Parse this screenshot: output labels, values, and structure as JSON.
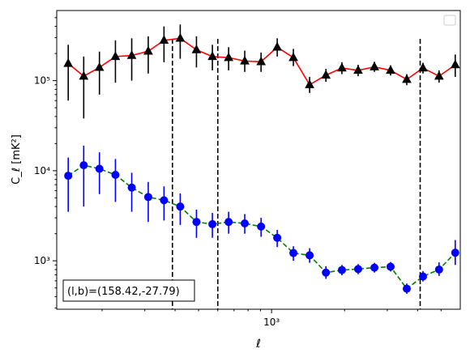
{
  "chart_data": {
    "type": "scatter",
    "x_scale": "log",
    "y_scale": "log",
    "xlim": [
      130,
      6000
    ],
    "ylim": [
      290,
      600000
    ],
    "xlabel": "ℓ",
    "ylabel": "C_ℓ  [mK²]",
    "x_ticks": [
      {
        "value": 1000,
        "label": "10³"
      }
    ],
    "y_ticks": [
      {
        "value": 1000,
        "label": "10³"
      },
      {
        "value": 10000,
        "label": "10⁴"
      },
      {
        "value": 100000,
        "label": "10⁵"
      }
    ],
    "legend_position": "top-right",
    "annotation": "(l,b)=(158.42,-27.79)",
    "vertical_lines": [
      390,
      600,
      4100
    ],
    "series": [
      {
        "color": "#ff0000",
        "marker": "triangle",
        "marker_color": "#000000",
        "errorbar_color": "#000000",
        "linestyle": "solid",
        "points": [
          {
            "x": 145,
            "y": 155000,
            "lo": 60000,
            "hi": 250000
          },
          {
            "x": 168,
            "y": 112000,
            "lo": 38000,
            "hi": 185000
          },
          {
            "x": 195,
            "y": 140000,
            "lo": 70000,
            "hi": 210000
          },
          {
            "x": 227,
            "y": 185000,
            "lo": 95000,
            "hi": 280000
          },
          {
            "x": 265,
            "y": 190000,
            "lo": 100000,
            "hi": 295000
          },
          {
            "x": 310,
            "y": 212000,
            "lo": 120000,
            "hi": 310000
          },
          {
            "x": 360,
            "y": 280000,
            "lo": 160000,
            "hi": 400000
          },
          {
            "x": 420,
            "y": 295000,
            "lo": 175000,
            "hi": 420000
          },
          {
            "x": 490,
            "y": 220000,
            "lo": 140000,
            "hi": 310000
          },
          {
            "x": 570,
            "y": 185000,
            "lo": 130000,
            "hi": 250000
          },
          {
            "x": 665,
            "y": 180000,
            "lo": 130000,
            "hi": 235000
          },
          {
            "x": 775,
            "y": 165000,
            "lo": 125000,
            "hi": 215000
          },
          {
            "x": 905,
            "y": 162000,
            "lo": 125000,
            "hi": 205000
          },
          {
            "x": 1055,
            "y": 235000,
            "lo": 185000,
            "hi": 295000
          },
          {
            "x": 1230,
            "y": 180000,
            "lo": 145000,
            "hi": 225000
          },
          {
            "x": 1435,
            "y": 90000,
            "lo": 73000,
            "hi": 110000
          },
          {
            "x": 1675,
            "y": 115000,
            "lo": 97000,
            "hi": 135000
          },
          {
            "x": 1950,
            "y": 138000,
            "lo": 118000,
            "hi": 160000
          },
          {
            "x": 2275,
            "y": 130000,
            "lo": 112000,
            "hi": 150000
          },
          {
            "x": 2655,
            "y": 142000,
            "lo": 125000,
            "hi": 162000
          },
          {
            "x": 3095,
            "y": 130000,
            "lo": 114000,
            "hi": 148000
          },
          {
            "x": 3610,
            "y": 103000,
            "lo": 89000,
            "hi": 118000
          },
          {
            "x": 4210,
            "y": 138000,
            "lo": 120000,
            "hi": 158000
          },
          {
            "x": 4905,
            "y": 112000,
            "lo": 95000,
            "hi": 130000
          },
          {
            "x": 5720,
            "y": 150000,
            "lo": 110000,
            "hi": 195000
          }
        ]
      },
      {
        "color": "#008000",
        "marker": "circle",
        "marker_color": "#0000ff",
        "errorbar_color": "#0000ff",
        "linestyle": "dashed",
        "points": [
          {
            "x": 145,
            "y": 8800,
            "lo": 3500,
            "hi": 14000
          },
          {
            "x": 168,
            "y": 11500,
            "lo": 4000,
            "hi": 19000
          },
          {
            "x": 195,
            "y": 10500,
            "lo": 5500,
            "hi": 16000
          },
          {
            "x": 227,
            "y": 9000,
            "lo": 4500,
            "hi": 13500
          },
          {
            "x": 265,
            "y": 6500,
            "lo": 3500,
            "hi": 9500
          },
          {
            "x": 310,
            "y": 5100,
            "lo": 2700,
            "hi": 7500
          },
          {
            "x": 360,
            "y": 4700,
            "lo": 2800,
            "hi": 6700
          },
          {
            "x": 420,
            "y": 4000,
            "lo": 2500,
            "hi": 5600
          },
          {
            "x": 490,
            "y": 2700,
            "lo": 1800,
            "hi": 3700
          },
          {
            "x": 570,
            "y": 2550,
            "lo": 1800,
            "hi": 3400
          },
          {
            "x": 665,
            "y": 2700,
            "lo": 2000,
            "hi": 3500
          },
          {
            "x": 775,
            "y": 2600,
            "lo": 2000,
            "hi": 3300
          },
          {
            "x": 905,
            "y": 2400,
            "lo": 1850,
            "hi": 3000
          },
          {
            "x": 1055,
            "y": 1800,
            "lo": 1420,
            "hi": 2200
          },
          {
            "x": 1230,
            "y": 1220,
            "lo": 1000,
            "hi": 1450
          },
          {
            "x": 1435,
            "y": 1150,
            "lo": 950,
            "hi": 1380
          },
          {
            "x": 1675,
            "y": 740,
            "lo": 630,
            "hi": 870
          },
          {
            "x": 1950,
            "y": 790,
            "lo": 690,
            "hi": 900
          },
          {
            "x": 2275,
            "y": 810,
            "lo": 710,
            "hi": 920
          },
          {
            "x": 2655,
            "y": 840,
            "lo": 740,
            "hi": 950
          },
          {
            "x": 3095,
            "y": 860,
            "lo": 760,
            "hi": 970
          },
          {
            "x": 3610,
            "y": 490,
            "lo": 430,
            "hi": 560
          },
          {
            "x": 4210,
            "y": 670,
            "lo": 590,
            "hi": 770
          },
          {
            "x": 4905,
            "y": 800,
            "lo": 680,
            "hi": 960
          },
          {
            "x": 5720,
            "y": 1230,
            "lo": 900,
            "hi": 1700
          }
        ]
      }
    ]
  }
}
